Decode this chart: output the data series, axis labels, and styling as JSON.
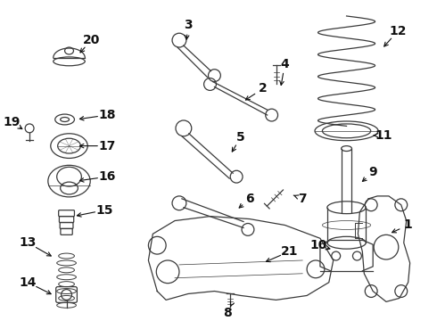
{
  "bg_color": "#ffffff",
  "fig_width": 4.9,
  "fig_height": 3.6,
  "dpi": 100,
  "image_data": null
}
